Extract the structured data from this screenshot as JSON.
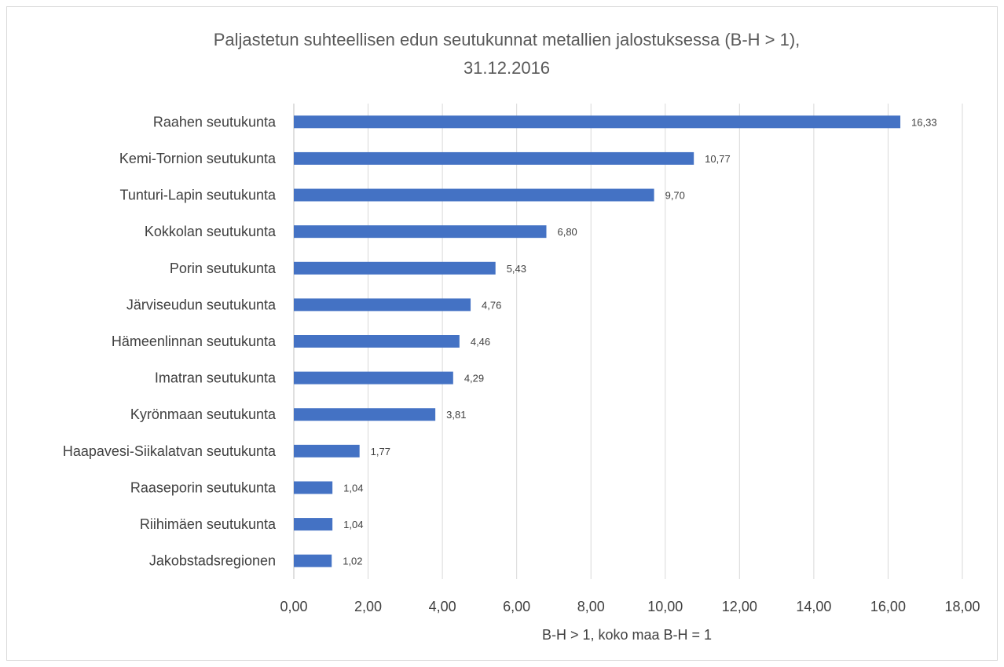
{
  "chart_data": {
    "type": "bar",
    "orientation": "horizontal",
    "title_line1": "Paljastetun suhteellisen edun seutukunnat metallien jalostuksessa (B-H > 1),",
    "title_line2": "31.12.2016",
    "xlabel": "B-H > 1, koko maa B-H = 1",
    "xlim": [
      0,
      18
    ],
    "x_ticks": [
      "0,00",
      "2,00",
      "4,00",
      "6,00",
      "8,00",
      "10,00",
      "12,00",
      "14,00",
      "16,00",
      "18,00"
    ],
    "categories": [
      "Raahen seutukunta",
      "Kemi-Tornion seutukunta",
      "Tunturi-Lapin seutukunta",
      "Kokkolan seutukunta",
      "Porin seutukunta",
      "Järviseudun seutukunta",
      "Hämeenlinnan seutukunta",
      "Imatran seutukunta",
      "Kyrönmaan seutukunta",
      "Haapavesi-Siikalatvan seutukunta",
      "Raaseporin seutukunta",
      "Riihimäen seutukunta",
      "Jakobstadsregionen"
    ],
    "values": [
      16.33,
      10.77,
      9.7,
      6.8,
      5.43,
      4.76,
      4.46,
      4.29,
      3.81,
      1.77,
      1.04,
      1.04,
      1.02
    ],
    "value_labels": [
      "16,33",
      "10,77",
      "9,70",
      "6,80",
      "5,43",
      "4,76",
      "4,46",
      "4,29",
      "3,81",
      "1,77",
      "1,04",
      "1,04",
      "1,02"
    ],
    "bar_color": "#4472c4",
    "grid": true,
    "legend": "none"
  }
}
